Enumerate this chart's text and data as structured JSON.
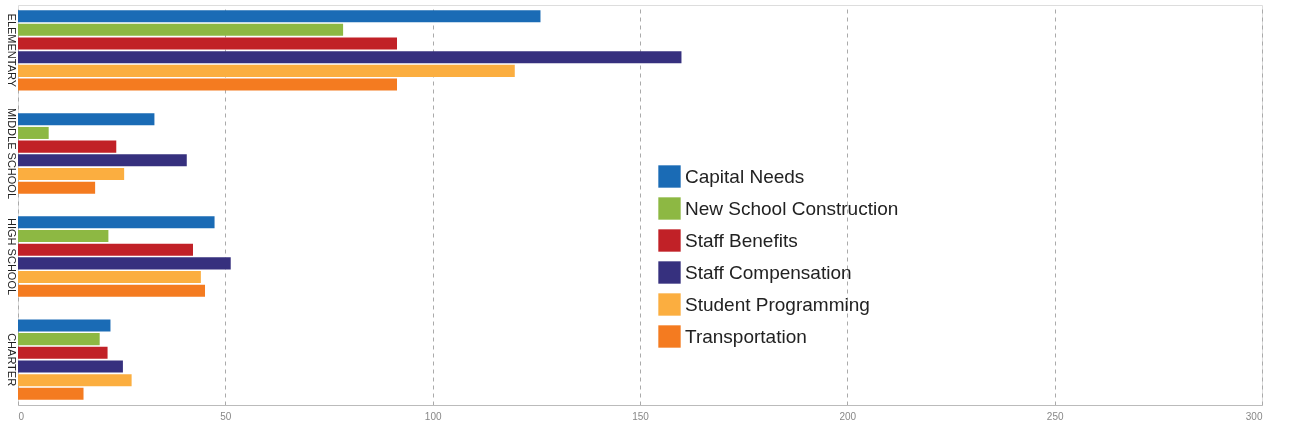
{
  "chart_data": {
    "type": "bar",
    "orientation": "horizontal",
    "categories": [
      "ELEMENTARY",
      "MIDDLE SCHOOL",
      "HIGH SCHOOL",
      "CHARTER"
    ],
    "series": [
      {
        "name": "Capital Needs",
        "color": "#1a6bb5",
        "values": [
          126,
          32.9,
          47.4,
          22.3
        ]
      },
      {
        "name": "New School Construction",
        "color": "#8db843",
        "values": [
          78.4,
          7.4,
          21.8,
          19.7
        ]
      },
      {
        "name": "Staff Benefits",
        "color": "#c12127",
        "values": [
          91.4,
          23.7,
          42.2,
          21.6
        ]
      },
      {
        "name": "Staff Compensation",
        "color": "#36307e",
        "values": [
          160,
          40.7,
          51.3,
          25.3
        ]
      },
      {
        "name": "Student Programming",
        "color": "#fbae40",
        "values": [
          119.8,
          25.6,
          44.1,
          27.4
        ]
      },
      {
        "name": "Transportation",
        "color": "#f47b20",
        "values": [
          91.4,
          18.6,
          45.1,
          15.8
        ]
      }
    ],
    "xlim": [
      0,
      300
    ],
    "xticks": [
      0,
      50,
      100,
      150,
      200,
      250,
      300
    ],
    "grid": "x",
    "legend": "right"
  }
}
